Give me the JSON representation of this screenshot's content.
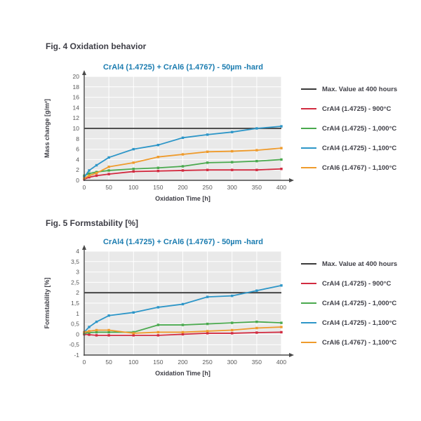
{
  "figures": [
    {
      "heading": "Fig. 4 Oxidation behavior"
    },
    {
      "heading": "Fig. 5 Formstability [%]"
    }
  ],
  "colors": {
    "title_blue": "#1b7cb0",
    "max_line_black": "#3a3a3a",
    "red_900": "#d22b40",
    "green_1000": "#4aa94e",
    "blue_1100": "#2d96c8",
    "orange_1100": "#ef9b2c",
    "plot_background": "#e9e9e9",
    "axis": "#4a4a4a"
  },
  "chart_data": [
    {
      "type": "line",
      "title": "CrAl4 (1.4725) + CrAl6 (1.4767) - 50µm -hard",
      "xlabel": "Oxidation Time [h]",
      "ylabel": "Mass change [g/m²]",
      "x": [
        0,
        10,
        25,
        50,
        100,
        150,
        200,
        250,
        300,
        350,
        400
      ],
      "xlim": [
        0,
        400
      ],
      "ylim": [
        0,
        20
      ],
      "xticks": [
        0,
        50,
        100,
        150,
        200,
        250,
        300,
        350,
        400
      ],
      "xtick_labels": [
        "0",
        "50",
        "100",
        "150",
        "200",
        "250",
        "300",
        "350",
        "400"
      ],
      "yticks": [
        0,
        2,
        4,
        6,
        8,
        10,
        12,
        14,
        16,
        18,
        20
      ],
      "ytick_labels": [
        "0",
        "2",
        "4",
        "6",
        "8",
        "10",
        "12",
        "14",
        "16",
        "18",
        "20"
      ],
      "grid": true,
      "legend_position": "right",
      "max_line": {
        "value": 10,
        "label": "Max. Value at 400 hours",
        "color": "#3a3a3a"
      },
      "series": [
        {
          "name": "CrAl4 (1.4725) - 900°C",
          "color": "#d22b40",
          "values": [
            0.2,
            0.6,
            0.9,
            1.2,
            1.7,
            1.8,
            1.9,
            2.0,
            2.0,
            2.0,
            2.2
          ]
        },
        {
          "name": "CrAl4 (1.4725) - 1,000°C",
          "color": "#4aa94e",
          "values": [
            0.9,
            1.3,
            1.6,
            1.9,
            2.2,
            2.4,
            2.7,
            3.4,
            3.5,
            3.7,
            4.0
          ]
        },
        {
          "name": "CrAl4 (1.4725) - 1,100°C",
          "color": "#2d96c8",
          "values": [
            0.6,
            1.9,
            2.9,
            4.4,
            6.0,
            6.8,
            8.2,
            8.8,
            9.3,
            10.0,
            10.4
          ]
        },
        {
          "name": "CrAl6 (1.4767) - 1,100°C",
          "color": "#ef9b2c",
          "values": [
            0.4,
            0.9,
            1.4,
            2.6,
            3.4,
            4.5,
            5.0,
            5.5,
            5.6,
            5.8,
            6.2
          ]
        }
      ]
    },
    {
      "type": "line",
      "title": "CrAl4 (1.4725) + CrAl6 (1.4767) - 50µm -hard",
      "xlabel": "Oxidation Time [h]",
      "ylabel": "Formstability [%]",
      "x": [
        0,
        10,
        25,
        50,
        100,
        150,
        200,
        250,
        300,
        350,
        400
      ],
      "xlim": [
        0,
        400
      ],
      "ylim": [
        -1,
        4
      ],
      "xticks": [
        0,
        50,
        100,
        150,
        200,
        250,
        300,
        350,
        400
      ],
      "xtick_labels": [
        "0",
        "50",
        "100",
        "150",
        "200",
        "250",
        "300",
        "350",
        "400"
      ],
      "yticks": [
        -1,
        -0.5,
        0,
        0.5,
        1,
        1.5,
        2,
        2.5,
        3,
        3.5,
        4
      ],
      "ytick_labels": [
        "-1",
        "-0,5",
        "0",
        "0,5",
        "1",
        "1,5",
        "2",
        "2,5",
        "3",
        "3,5",
        "4"
      ],
      "grid": true,
      "legend_position": "right",
      "max_line": {
        "value": 2,
        "label": "Max. Value at 400 hours",
        "color": "#3a3a3a"
      },
      "series": [
        {
          "name": "CrAl4 (1.4725) - 900°C",
          "color": "#d22b40",
          "values": [
            0.0,
            -0.02,
            -0.05,
            -0.05,
            -0.05,
            -0.05,
            0.0,
            0.05,
            0.05,
            0.08,
            0.1
          ]
        },
        {
          "name": "CrAl4 (1.4725) - 1,000°C",
          "color": "#4aa94e",
          "values": [
            0.05,
            0.08,
            0.1,
            0.1,
            0.1,
            0.45,
            0.45,
            0.5,
            0.55,
            0.6,
            0.55
          ]
        },
        {
          "name": "CrAl4 (1.4725) - 1,100°C",
          "color": "#2d96c8",
          "values": [
            0.1,
            0.35,
            0.6,
            0.9,
            1.05,
            1.3,
            1.45,
            1.8,
            1.85,
            2.1,
            2.35
          ]
        },
        {
          "name": "CrAl6 (1.4767) - 1,100°C",
          "color": "#ef9b2c",
          "values": [
            0.1,
            0.15,
            0.2,
            0.2,
            0.05,
            0.1,
            0.1,
            0.15,
            0.2,
            0.3,
            0.35
          ]
        }
      ]
    }
  ]
}
